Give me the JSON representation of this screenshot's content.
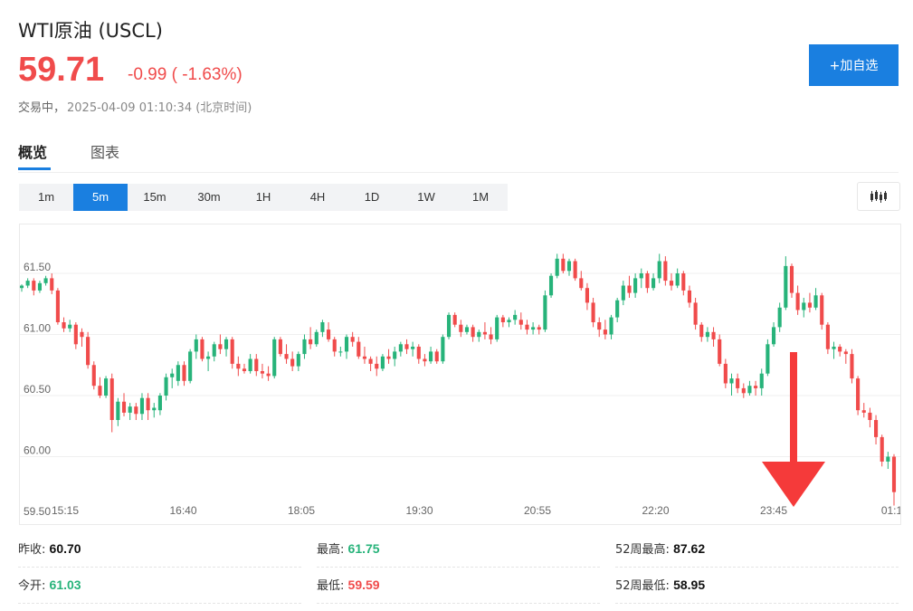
{
  "header": {
    "title": "WTI原油 (USCL)",
    "price": "59.71",
    "change": "-0.99 ( -1.63%)",
    "status": "交易中，",
    "timestamp": "2025-04-09 01:10:34 (北京时间)",
    "add_button": "+加自选"
  },
  "tabs": [
    {
      "label": "概览"
    },
    {
      "label": "图表"
    }
  ],
  "periods": [
    {
      "label": "1m"
    },
    {
      "label": "5m"
    },
    {
      "label": "15m"
    },
    {
      "label": "30m"
    },
    {
      "label": "1H"
    },
    {
      "label": "4H"
    },
    {
      "label": "1D"
    },
    {
      "label": "1W"
    },
    {
      "label": "1M"
    }
  ],
  "active_period": "5m",
  "colors": {
    "up": "#27b37a",
    "down": "#f04b4b",
    "accent": "#1a7fe0"
  },
  "stats": {
    "prev_close": {
      "label": "昨收:",
      "value": "60.70"
    },
    "open": {
      "label": "今开:",
      "value": "61.03"
    },
    "high": {
      "label": "最高:",
      "value": "61.75"
    },
    "low": {
      "label": "最低:",
      "value": "59.59"
    },
    "high52": {
      "label": "52周最高:",
      "value": "87.62"
    },
    "low52": {
      "label": "52周最低:",
      "value": "58.95"
    }
  },
  "chart_data": {
    "type": "candlestick",
    "grid": true,
    "ylim": [
      59.5,
      61.9
    ],
    "yticks": [
      "61.50",
      "61.00",
      "60.50",
      "60.00",
      "59.50"
    ],
    "xticks": [
      "15:15",
      "16:40",
      "18:05",
      "19:30",
      "20:55",
      "22:20",
      "23:45",
      "01:1"
    ],
    "annotation": "down-arrow",
    "candles": [
      [
        61.38,
        61.41,
        61.35,
        61.4
      ],
      [
        61.4,
        61.46,
        61.38,
        61.44
      ],
      [
        61.44,
        61.46,
        61.32,
        61.36
      ],
      [
        61.36,
        61.44,
        61.34,
        61.42
      ],
      [
        61.42,
        61.48,
        61.4,
        61.46
      ],
      [
        61.46,
        61.5,
        61.33,
        61.36
      ],
      [
        61.36,
        61.38,
        61.08,
        61.1
      ],
      [
        61.1,
        61.14,
        61.02,
        61.05
      ],
      [
        61.05,
        61.12,
        61.02,
        61.08
      ],
      [
        61.08,
        61.1,
        60.88,
        60.92
      ],
      [
        61.02,
        61.05,
        60.9,
        60.98
      ],
      [
        60.98,
        61.02,
        60.72,
        60.75
      ],
      [
        60.75,
        60.78,
        60.55,
        60.58
      ],
      [
        60.58,
        60.65,
        60.48,
        60.5
      ],
      [
        60.5,
        60.66,
        60.48,
        60.64
      ],
      [
        60.64,
        60.68,
        60.2,
        60.3
      ],
      [
        60.3,
        60.48,
        60.25,
        60.45
      ],
      [
        60.45,
        60.52,
        60.33,
        60.36
      ],
      [
        60.36,
        60.44,
        60.3,
        60.41
      ],
      [
        60.41,
        60.44,
        60.3,
        60.35
      ],
      [
        60.35,
        60.52,
        60.3,
        60.48
      ],
      [
        60.48,
        60.52,
        60.3,
        60.38
      ],
      [
        60.38,
        60.44,
        60.32,
        60.4
      ],
      [
        60.38,
        60.52,
        60.34,
        60.5
      ],
      [
        60.5,
        60.68,
        60.46,
        60.65
      ],
      [
        60.65,
        60.72,
        60.56,
        60.68
      ],
      [
        60.62,
        60.78,
        60.58,
        60.75
      ],
      [
        60.75,
        60.78,
        60.58,
        60.62
      ],
      [
        60.62,
        60.88,
        60.6,
        60.86
      ],
      [
        60.86,
        61.0,
        60.8,
        60.96
      ],
      [
        60.96,
        60.98,
        60.78,
        60.8
      ],
      [
        60.8,
        60.86,
        60.7,
        60.82
      ],
      [
        60.82,
        60.94,
        60.78,
        60.92
      ],
      [
        60.92,
        61.0,
        60.84,
        60.88
      ],
      [
        60.88,
        60.98,
        60.82,
        60.96
      ],
      [
        60.96,
        60.98,
        60.72,
        60.76
      ],
      [
        60.76,
        60.82,
        60.66,
        60.72
      ],
      [
        60.72,
        60.76,
        60.68,
        60.7
      ],
      [
        60.7,
        60.84,
        60.68,
        60.8
      ],
      [
        60.8,
        60.84,
        60.66,
        60.7
      ],
      [
        60.7,
        60.76,
        60.64,
        60.68
      ],
      [
        60.68,
        60.74,
        60.62,
        60.66
      ],
      [
        60.66,
        60.98,
        60.64,
        60.96
      ],
      [
        60.96,
        60.98,
        60.82,
        60.84
      ],
      [
        60.84,
        60.92,
        60.76,
        60.8
      ],
      [
        60.8,
        60.86,
        60.7,
        60.74
      ],
      [
        60.74,
        60.86,
        60.7,
        60.84
      ],
      [
        60.84,
        61.0,
        60.8,
        60.96
      ],
      [
        60.96,
        61.06,
        60.88,
        60.92
      ],
      [
        60.92,
        61.04,
        60.9,
        61.02
      ],
      [
        61.02,
        61.12,
        60.98,
        61.1
      ],
      [
        61.04,
        61.1,
        60.94,
        60.96
      ],
      [
        60.96,
        60.98,
        60.82,
        60.86
      ],
      [
        60.86,
        60.9,
        60.82,
        60.86
      ],
      [
        60.86,
        61.0,
        60.8,
        60.98
      ],
      [
        60.98,
        61.02,
        60.9,
        60.94
      ],
      [
        60.94,
        60.98,
        60.8,
        60.82
      ],
      [
        60.82,
        60.9,
        60.76,
        60.8
      ],
      [
        60.8,
        60.82,
        60.7,
        60.76
      ],
      [
        60.76,
        60.82,
        60.66,
        60.72
      ],
      [
        60.72,
        60.84,
        60.7,
        60.82
      ],
      [
        60.82,
        60.88,
        60.76,
        60.8
      ],
      [
        60.8,
        60.9,
        60.74,
        60.86
      ],
      [
        60.86,
        60.94,
        60.82,
        60.92
      ],
      [
        60.92,
        60.96,
        60.84,
        60.88
      ],
      [
        60.88,
        60.94,
        60.82,
        60.9
      ],
      [
        60.9,
        60.92,
        60.76,
        60.8
      ],
      [
        60.8,
        60.84,
        60.74,
        60.78
      ],
      [
        60.78,
        60.9,
        60.76,
        60.86
      ],
      [
        60.86,
        60.88,
        60.76,
        60.78
      ],
      [
        60.78,
        61.0,
        60.76,
        60.98
      ],
      [
        60.98,
        61.18,
        60.96,
        61.16
      ],
      [
        61.16,
        61.18,
        61.06,
        61.08
      ],
      [
        61.08,
        61.12,
        60.98,
        61.02
      ],
      [
        61.02,
        61.08,
        61.0,
        61.06
      ],
      [
        61.06,
        61.08,
        60.94,
        60.98
      ],
      [
        60.98,
        61.04,
        60.94,
        61.02
      ],
      [
        61.02,
        61.1,
        60.96,
        61.0
      ],
      [
        61.0,
        61.06,
        60.92,
        60.96
      ],
      [
        60.96,
        61.16,
        60.94,
        61.14
      ],
      [
        61.14,
        61.16,
        61.06,
        61.1
      ],
      [
        61.1,
        61.14,
        61.06,
        61.12
      ],
      [
        61.12,
        61.2,
        61.08,
        61.16
      ],
      [
        61.12,
        61.18,
        61.04,
        61.08
      ],
      [
        61.08,
        61.12,
        61.0,
        61.04
      ],
      [
        61.04,
        61.1,
        61.0,
        61.06
      ],
      [
        61.06,
        61.08,
        61.0,
        61.04
      ],
      [
        61.04,
        61.36,
        61.02,
        61.32
      ],
      [
        61.32,
        61.5,
        61.3,
        61.48
      ],
      [
        61.48,
        61.66,
        61.46,
        61.62
      ],
      [
        61.62,
        61.66,
        61.5,
        61.52
      ],
      [
        61.52,
        61.62,
        61.48,
        61.6
      ],
      [
        61.6,
        61.62,
        61.44,
        61.46
      ],
      [
        61.46,
        61.52,
        61.36,
        61.38
      ],
      [
        61.38,
        61.42,
        61.2,
        61.26
      ],
      [
        61.26,
        61.3,
        61.06,
        61.1
      ],
      [
        61.1,
        61.14,
        60.98,
        61.04
      ],
      [
        61.04,
        61.12,
        60.96,
        61.0
      ],
      [
        61.0,
        61.16,
        60.96,
        61.14
      ],
      [
        61.14,
        61.3,
        61.1,
        61.28
      ],
      [
        61.28,
        61.44,
        61.24,
        61.4
      ],
      [
        61.4,
        61.48,
        61.3,
        61.34
      ],
      [
        61.34,
        61.5,
        61.3,
        61.46
      ],
      [
        61.46,
        61.54,
        61.38,
        61.5
      ],
      [
        61.5,
        61.52,
        61.34,
        61.38
      ],
      [
        61.38,
        61.5,
        61.36,
        61.46
      ],
      [
        61.46,
        61.66,
        61.42,
        61.6
      ],
      [
        61.6,
        61.64,
        61.4,
        61.44
      ],
      [
        61.44,
        61.5,
        61.36,
        61.4
      ],
      [
        61.4,
        61.54,
        61.38,
        61.5
      ],
      [
        61.5,
        61.52,
        61.32,
        61.36
      ],
      [
        61.36,
        61.4,
        61.22,
        61.26
      ],
      [
        61.26,
        61.3,
        61.04,
        61.08
      ],
      [
        61.08,
        61.1,
        60.94,
        60.98
      ],
      [
        60.98,
        61.06,
        60.94,
        61.02
      ],
      [
        61.02,
        61.06,
        60.9,
        60.96
      ],
      [
        60.96,
        61.0,
        60.74,
        60.76
      ],
      [
        60.76,
        60.8,
        60.56,
        60.6
      ],
      [
        60.6,
        60.68,
        60.5,
        60.64
      ],
      [
        60.64,
        60.68,
        60.52,
        60.56
      ],
      [
        60.56,
        60.6,
        60.48,
        60.52
      ],
      [
        60.52,
        60.62,
        60.5,
        60.58
      ],
      [
        60.58,
        60.62,
        60.5,
        60.56
      ],
      [
        60.56,
        60.72,
        60.5,
        60.68
      ],
      [
        60.68,
        60.96,
        60.66,
        60.92
      ],
      [
        60.92,
        61.1,
        60.9,
        61.06
      ],
      [
        61.06,
        61.26,
        61.02,
        61.22
      ],
      [
        61.22,
        61.64,
        61.2,
        61.56
      ],
      [
        61.56,
        61.58,
        61.3,
        61.34
      ],
      [
        61.34,
        61.4,
        61.16,
        61.2
      ],
      [
        61.2,
        61.3,
        61.14,
        61.26
      ],
      [
        61.26,
        61.34,
        61.18,
        61.22
      ],
      [
        61.22,
        61.38,
        61.2,
        61.32
      ],
      [
        61.32,
        61.34,
        61.04,
        61.08
      ],
      [
        61.08,
        61.1,
        60.84,
        60.88
      ],
      [
        60.88,
        60.94,
        60.8,
        60.9
      ],
      [
        60.9,
        60.92,
        60.82,
        60.86
      ],
      [
        60.86,
        60.88,
        60.76,
        60.84
      ],
      [
        60.84,
        60.88,
        60.6,
        60.64
      ],
      [
        60.64,
        60.66,
        60.34,
        60.38
      ],
      [
        60.38,
        60.44,
        60.32,
        60.36
      ],
      [
        60.36,
        60.4,
        60.24,
        60.3
      ],
      [
        60.3,
        60.34,
        60.1,
        60.16
      ],
      [
        60.16,
        60.18,
        59.92,
        59.96
      ],
      [
        59.96,
        60.04,
        59.9,
        60.0
      ],
      [
        60.0,
        60.02,
        59.6,
        59.71
      ]
    ]
  }
}
